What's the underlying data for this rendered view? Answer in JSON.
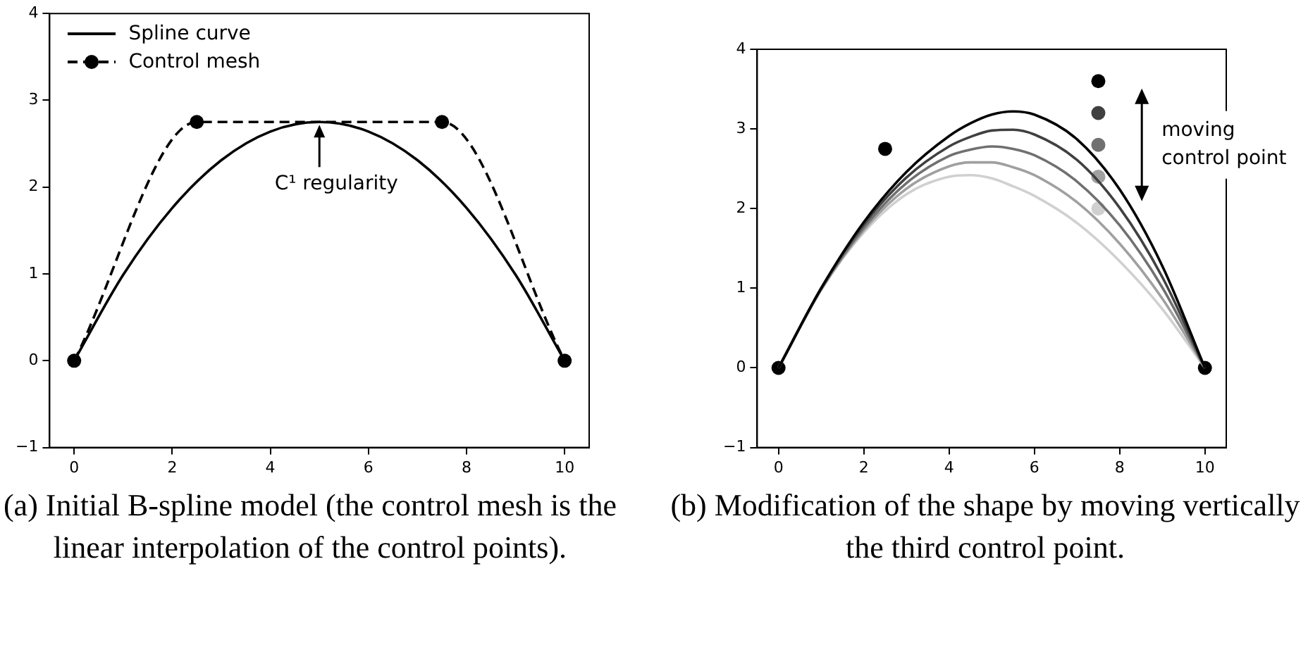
{
  "chart_data": [
    {
      "type": "line",
      "xlim": [
        -0.5,
        10.5
      ],
      "ylim": [
        -1,
        4
      ],
      "xticks": [
        0,
        2,
        4,
        6,
        8,
        10
      ],
      "yticks": [
        {
          "value": -1,
          "label": "−1"
        },
        0,
        1,
        2,
        3,
        4
      ],
      "legend": "top left",
      "line_style": "solid",
      "series": [
        {
          "name": "Spline curve",
          "color": "#000000",
          "marker": "none",
          "x": [
            0,
            1,
            2,
            3,
            4,
            5,
            6,
            7,
            8,
            9,
            10
          ],
          "values": [
            0,
            0.99,
            1.76,
            2.31,
            2.64,
            2.75,
            2.64,
            2.31,
            1.76,
            0.99,
            0
          ]
        },
        {
          "name": "Control mesh",
          "color": "#000000",
          "marker": "circle",
          "line_style": "dashed",
          "x": [
            0,
            2.5,
            7.5,
            10
          ],
          "values": [
            0,
            2.75,
            2.75,
            0
          ]
        }
      ],
      "annotations": [
        {
          "text": "C¹ regularity",
          "x": 5,
          "y": 2.75
        },
        "(a) Initial B-spline model (the control mesh is the linear interpolation of the control points)."
      ]
    },
    {
      "type": "line",
      "xlim": [
        -0.5,
        10.5
      ],
      "ylim": [
        -1,
        4
      ],
      "xticks": [
        0,
        2,
        4,
        6,
        8,
        10
      ],
      "yticks": [
        {
          "value": -1,
          "label": "−1"
        },
        0,
        1,
        2,
        3,
        4
      ],
      "line_style": "solid",
      "x": [
        0,
        1,
        2,
        3,
        4,
        4.5,
        5,
        5.5,
        6,
        7,
        8,
        9,
        10
      ],
      "series": [
        {
          "color": "#000000",
          "values": [
            0,
            1.0,
            1.83,
            2.46,
            2.91,
            3.07,
            3.18,
            3.22,
            3.18,
            2.87,
            2.24,
            1.28,
            0
          ]
        },
        {
          "color": "#404040",
          "values": [
            0,
            1.0,
            1.8,
            2.39,
            2.78,
            2.9,
            2.98,
            2.99,
            2.93,
            2.61,
            2.01,
            1.14,
            0
          ]
        },
        {
          "color": "#707070",
          "values": [
            0,
            0.99,
            1.76,
            2.32,
            2.66,
            2.74,
            2.78,
            2.75,
            2.67,
            2.34,
            1.79,
            1.01,
            0
          ]
        },
        {
          "color": "#a0a0a0",
          "values": [
            0,
            0.98,
            1.73,
            2.25,
            2.53,
            2.58,
            2.58,
            2.52,
            2.42,
            2.08,
            1.56,
            0.87,
            0
          ]
        },
        {
          "color": "#d0d0d0",
          "values": [
            0,
            0.98,
            1.7,
            2.18,
            2.4,
            2.42,
            2.38,
            2.28,
            2.16,
            1.82,
            1.34,
            0.74,
            0
          ]
        },
        {
          "type": "scatter",
          "color": "#000000",
          "marker": "circle",
          "x": [
            0,
            2.5,
            10
          ],
          "values": [
            0,
            2.75,
            0
          ]
        },
        {
          "type": "scatter",
          "marker": "circle",
          "x": [
            7.5,
            7.5,
            7.5,
            7.5,
            7.5
          ],
          "values": [
            3.6,
            3.2,
            2.8,
            2.4,
            2.0
          ],
          "colors": [
            "#000000",
            "#404040",
            "#707070",
            "#a0a0a0",
            "#d0d0d0"
          ]
        }
      ],
      "annotations": [
        "moving\ncontrol point",
        "(b) Modification of the shape by moving vertically the third control point."
      ]
    }
  ]
}
